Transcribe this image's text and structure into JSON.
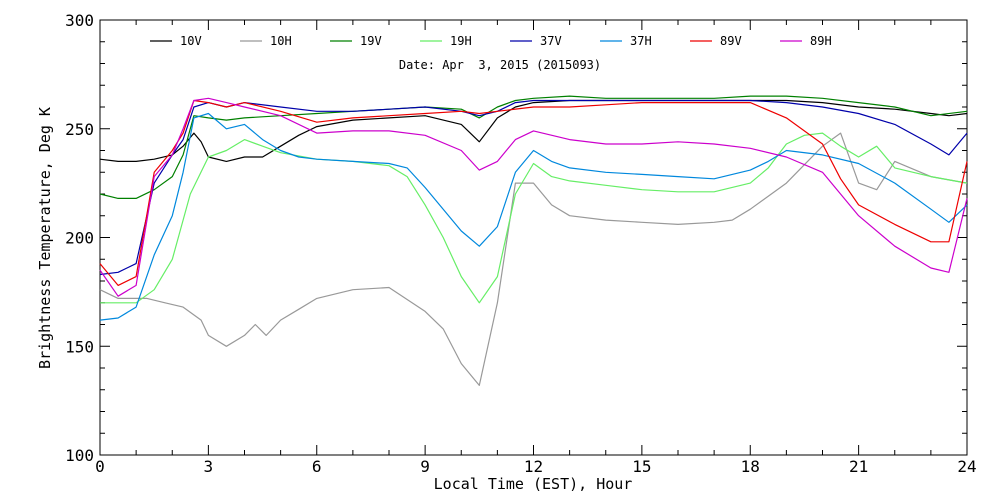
{
  "chart_data": {
    "type": "line",
    "title": "",
    "subtitle": "Date: Apr  3, 2015 (2015093)",
    "xlabel": "Local Time (EST), Hour",
    "ylabel": "Brightness Temperature, Deg K",
    "xlim": [
      0,
      24
    ],
    "ylim": [
      100,
      300
    ],
    "xticks": [
      0,
      3,
      6,
      9,
      12,
      15,
      18,
      21,
      24
    ],
    "yticks": [
      100,
      150,
      200,
      250,
      300
    ],
    "grid": false,
    "legend_position": "top",
    "series": [
      {
        "name": "10V",
        "color": "#000000",
        "x": [
          0,
          0.5,
          1,
          1.5,
          2,
          2.3,
          2.6,
          2.8,
          3,
          3.5,
          4,
          4.5,
          5,
          5.5,
          6,
          7,
          8,
          9,
          10,
          10.5,
          11,
          11.5,
          12,
          13,
          14,
          15,
          16,
          17,
          18,
          19,
          20,
          21,
          22,
          23,
          23.5,
          24
        ],
        "y": [
          236,
          235,
          235,
          236,
          238,
          242,
          248,
          244,
          237,
          235,
          237,
          237,
          242,
          247,
          251,
          254,
          255,
          256,
          252,
          244,
          255,
          260,
          262,
          263,
          263,
          263,
          263,
          263,
          263,
          263,
          262,
          260,
          259,
          257,
          256,
          257
        ]
      },
      {
        "name": "10H",
        "color": "#999999",
        "x": [
          0,
          0.5,
          1,
          1.3,
          1.8,
          2.3,
          2.8,
          3,
          3.5,
          4,
          4.3,
          4.6,
          5,
          5.5,
          6,
          7,
          8,
          9,
          9.5,
          10,
          10.5,
          11,
          11.5,
          12,
          12.5,
          13,
          14,
          15,
          16,
          17,
          17.5,
          18,
          19,
          20,
          20.5,
          21,
          21.5,
          22,
          23,
          24
        ],
        "y": [
          176,
          172,
          172,
          172,
          170,
          168,
          162,
          155,
          150,
          155,
          160,
          155,
          162,
          167,
          172,
          176,
          177,
          166,
          158,
          142,
          132,
          170,
          225,
          225,
          215,
          210,
          208,
          207,
          206,
          207,
          208,
          213,
          225,
          242,
          248,
          225,
          222,
          235,
          228,
          225
        ]
      },
      {
        "name": "19V",
        "color": "#008000",
        "x": [
          0,
          0.5,
          1,
          1.5,
          2,
          2.3,
          2.6,
          3,
          3.5,
          4,
          5,
          6,
          7,
          8,
          9,
          10,
          10.5,
          11,
          11.5,
          12,
          13,
          14,
          15,
          16,
          17,
          18,
          19,
          20,
          21,
          22,
          23,
          24
        ],
        "y": [
          220,
          218,
          218,
          222,
          228,
          238,
          256,
          255,
          254,
          255,
          256,
          257,
          258,
          259,
          260,
          259,
          255,
          260,
          263,
          264,
          265,
          264,
          264,
          264,
          264,
          265,
          265,
          264,
          262,
          260,
          256,
          258
        ]
      },
      {
        "name": "19H",
        "color": "#66ee66",
        "x": [
          0,
          0.5,
          1,
          1.5,
          2,
          2.5,
          3,
          3.5,
          4,
          4.5,
          5,
          6,
          7,
          8,
          8.5,
          9,
          9.5,
          10,
          10.5,
          11,
          11.5,
          12,
          12.5,
          13,
          14,
          15,
          16,
          17,
          18,
          18.5,
          19,
          19.5,
          20,
          20.5,
          21,
          21.5,
          22,
          23,
          24
        ],
        "y": [
          170,
          170,
          170,
          176,
          190,
          220,
          237,
          240,
          245,
          242,
          239,
          236,
          235,
          233,
          228,
          215,
          200,
          182,
          170,
          182,
          220,
          234,
          228,
          226,
          224,
          222,
          221,
          221,
          225,
          232,
          243,
          247,
          248,
          242,
          237,
          242,
          232,
          228,
          225
        ]
      },
      {
        "name": "37V",
        "color": "#0000aa",
        "x": [
          0,
          0.5,
          1,
          1.5,
          2,
          2.3,
          2.6,
          3,
          3.5,
          4,
          5,
          6,
          7,
          8,
          9,
          10,
          10.5,
          11,
          11.5,
          12,
          13,
          14,
          15,
          16,
          17,
          18,
          19,
          20,
          21,
          22,
          23,
          23.5,
          24
        ],
        "y": [
          183,
          184,
          188,
          225,
          238,
          245,
          260,
          262,
          260,
          262,
          260,
          258,
          258,
          259,
          260,
          258,
          256,
          258,
          262,
          263,
          263,
          263,
          263,
          263,
          263,
          263,
          262,
          260,
          257,
          252,
          243,
          238,
          248
        ]
      },
      {
        "name": "37H",
        "color": "#0088dd",
        "x": [
          0,
          0.5,
          1,
          1.5,
          2,
          2.3,
          2.6,
          3,
          3.5,
          4,
          4.5,
          5,
          5.5,
          6,
          7,
          8,
          8.5,
          9,
          9.5,
          10,
          10.5,
          11,
          11.5,
          12,
          12.5,
          13,
          14,
          15,
          16,
          17,
          18,
          18.5,
          19,
          20,
          21,
          22,
          23,
          23.5,
          24
        ],
        "y": [
          162,
          163,
          168,
          192,
          210,
          230,
          255,
          257,
          250,
          252,
          245,
          240,
          237,
          236,
          235,
          234,
          232,
          223,
          213,
          203,
          196,
          205,
          230,
          240,
          235,
          232,
          230,
          229,
          228,
          227,
          231,
          235,
          240,
          238,
          234,
          225,
          213,
          207,
          215
        ]
      },
      {
        "name": "89V",
        "color": "#ee0000",
        "x": [
          0,
          0.5,
          1,
          1.5,
          2,
          2.3,
          2.6,
          3,
          3.5,
          4,
          5,
          6,
          7,
          8,
          9,
          10,
          10.5,
          11,
          12,
          13,
          14,
          15,
          16,
          17,
          18,
          19,
          20,
          20.5,
          21,
          22,
          23,
          23.5,
          24
        ],
        "y": [
          188,
          178,
          182,
          230,
          240,
          248,
          263,
          262,
          260,
          262,
          258,
          253,
          255,
          256,
          257,
          258,
          257,
          258,
          260,
          260,
          261,
          262,
          262,
          262,
          262,
          255,
          243,
          227,
          215,
          206,
          198,
          198,
          235
        ]
      },
      {
        "name": "89H",
        "color": "#cc00cc",
        "x": [
          0,
          0.5,
          1,
          1.5,
          2,
          2.3,
          2.6,
          3,
          3.5,
          4,
          5,
          6,
          7,
          8,
          9,
          10,
          10.5,
          11,
          11.5,
          12,
          13,
          14,
          15,
          16,
          17,
          18,
          19,
          20,
          21,
          22,
          23,
          23.5,
          24
        ],
        "y": [
          185,
          173,
          178,
          228,
          238,
          250,
          263,
          264,
          262,
          260,
          256,
          248,
          249,
          249,
          247,
          240,
          231,
          235,
          245,
          249,
          245,
          243,
          243,
          244,
          243,
          241,
          237,
          230,
          210,
          196,
          186,
          184,
          218
        ]
      }
    ]
  }
}
